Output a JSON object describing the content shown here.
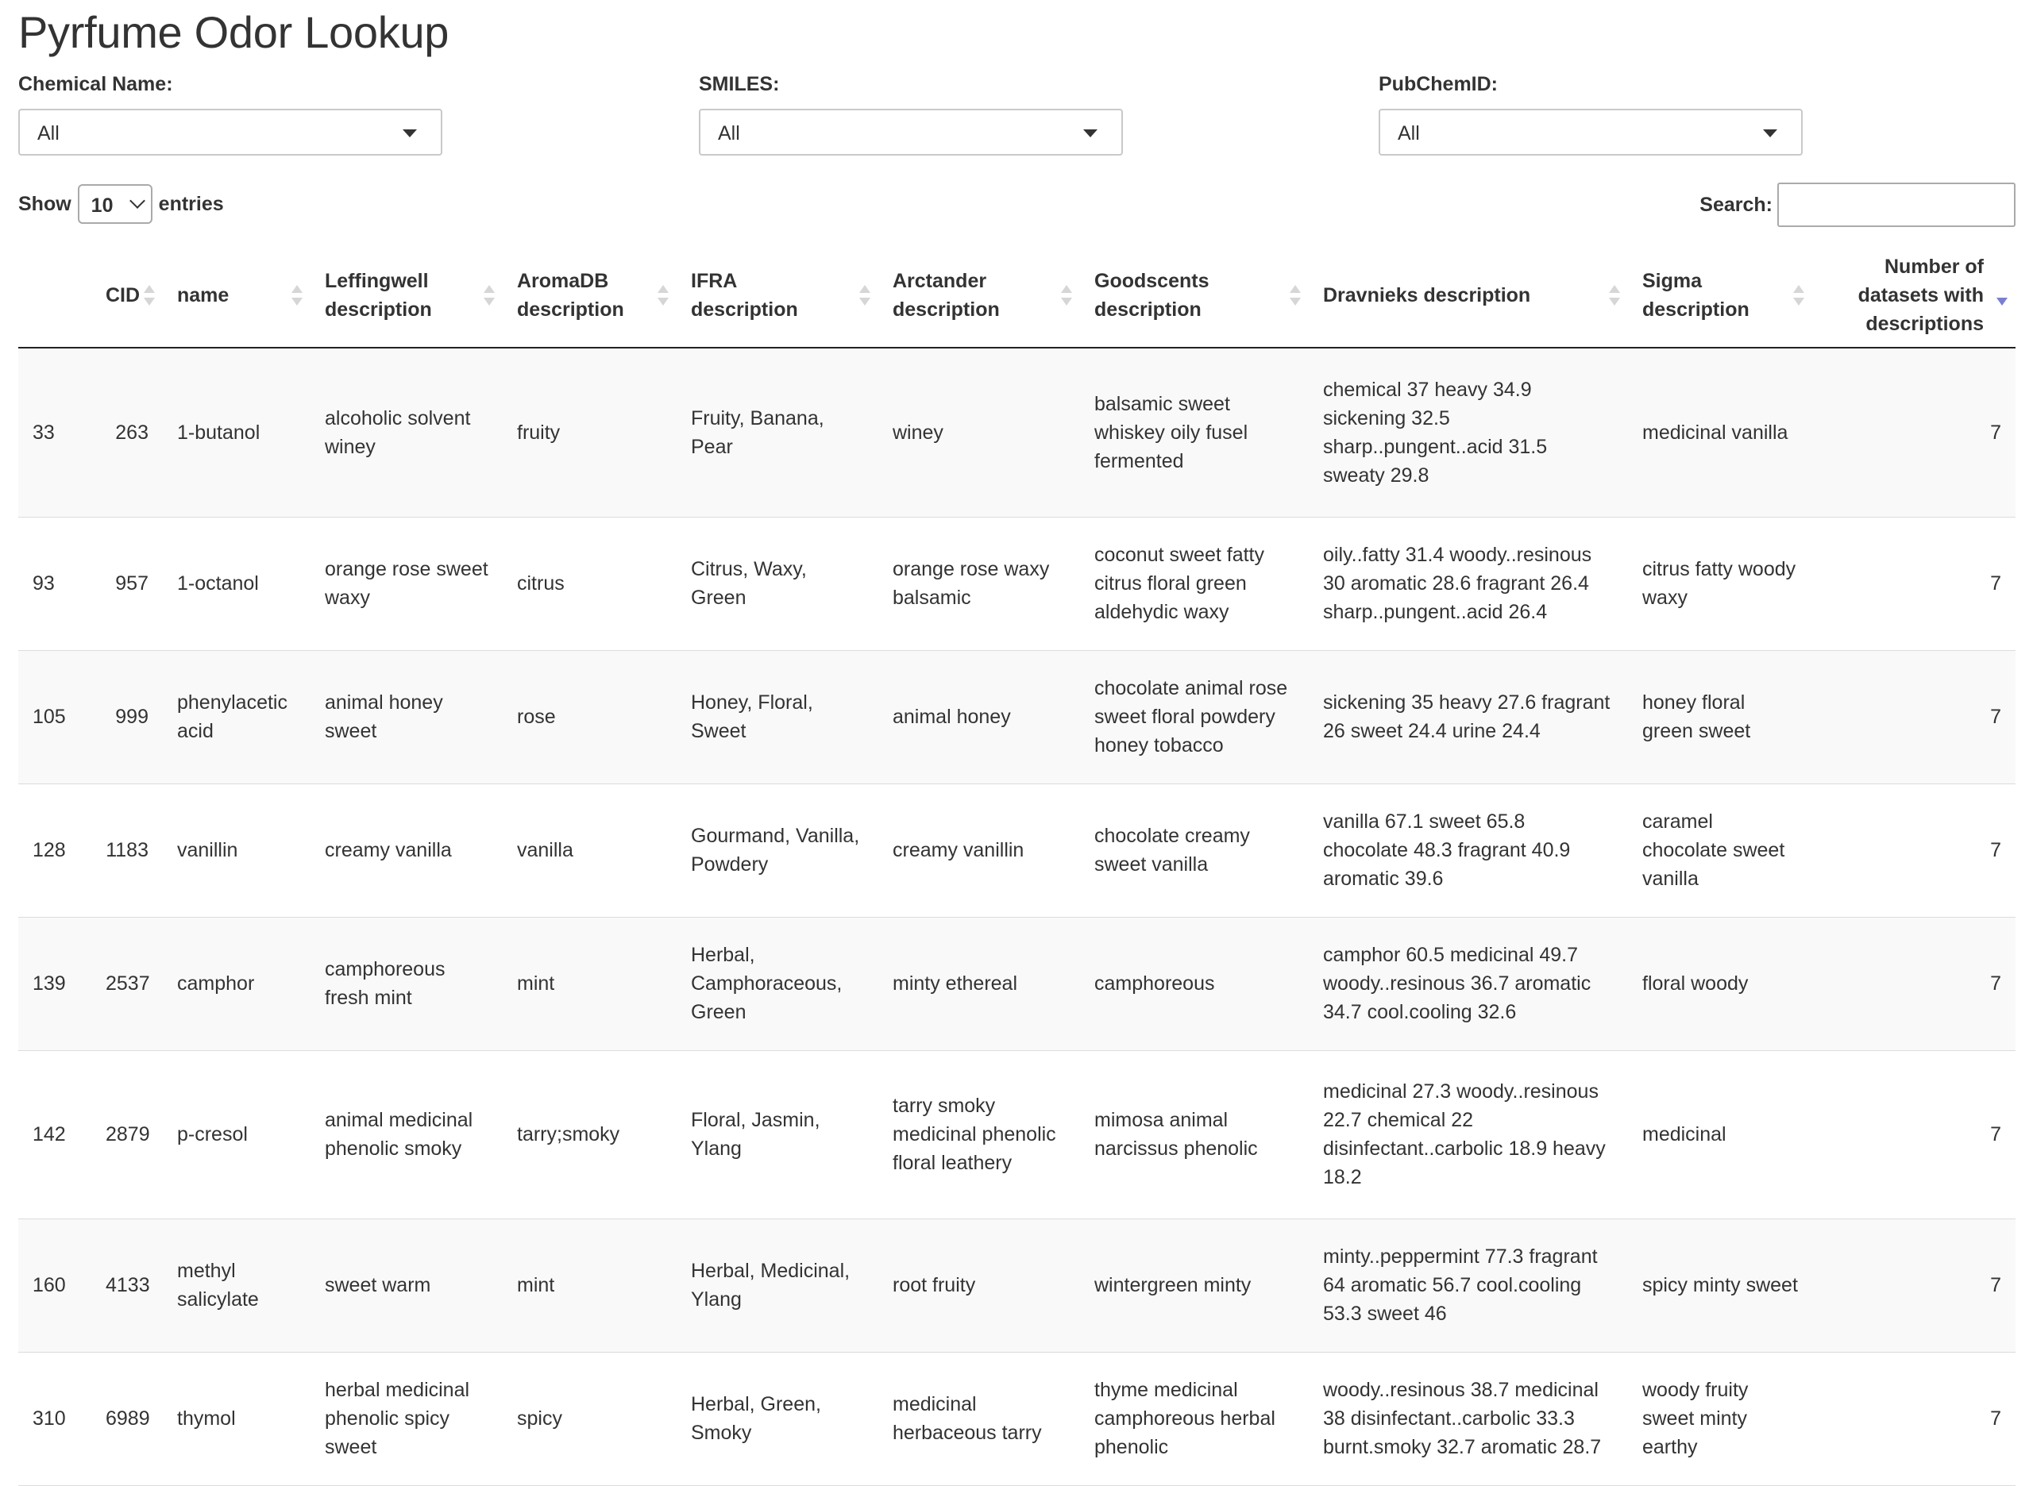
{
  "page": {
    "title": "Pyrfume Odor Lookup"
  },
  "filters": [
    {
      "label": "Chemical Name:",
      "value": "All"
    },
    {
      "label": "SMILES:",
      "value": "All"
    },
    {
      "label": "PubChemID:",
      "value": "All"
    }
  ],
  "table_controls": {
    "show_label": "Show",
    "entries_value": "10",
    "entries_label": "entries",
    "search_label": "Search:",
    "search_value": ""
  },
  "columns": [
    {
      "label": "",
      "align": "left"
    },
    {
      "label": "CID",
      "align": "right"
    },
    {
      "label": "name",
      "align": "left"
    },
    {
      "label": "Leffingwell description",
      "align": "left"
    },
    {
      "label": "AromaDB description",
      "align": "left"
    },
    {
      "label": "IFRA description",
      "align": "left"
    },
    {
      "label": "Arctander description",
      "align": "left"
    },
    {
      "label": "Goodscents description",
      "align": "left"
    },
    {
      "label": "Dravnieks description",
      "align": "left"
    },
    {
      "label": "Sigma description",
      "align": "left"
    },
    {
      "label": "Number of datasets with descriptions",
      "align": "right"
    }
  ],
  "rows": [
    [
      "33",
      "263",
      "1-butanol",
      "alcoholic solvent winey",
      "fruity",
      "Fruity, Banana, Pear",
      "winey",
      "balsamic sweet whiskey oily fusel fermented",
      "chemical 37 heavy 34.9 sickening 32.5 sharp..pungent..acid 31.5 sweaty 29.8",
      "medicinal vanilla",
      "7"
    ],
    [
      "93",
      "957",
      "1-octanol",
      "orange rose sweet waxy",
      "citrus",
      "Citrus, Waxy, Green",
      "orange rose waxy balsamic",
      "coconut sweet fatty citrus floral green aldehydic waxy",
      "oily..fatty 31.4 woody..resinous 30 aromatic 28.6 fragrant 26.4 sharp..pungent..acid 26.4",
      "citrus fatty woody waxy",
      "7"
    ],
    [
      "105",
      "999",
      "phenylacetic acid",
      "animal honey sweet",
      "rose",
      "Honey, Floral, Sweet",
      "animal honey",
      "chocolate animal rose sweet floral powdery honey tobacco",
      "sickening 35 heavy 27.6 fragrant 26 sweet 24.4 urine 24.4",
      "honey floral green sweet",
      "7"
    ],
    [
      "128",
      "1183",
      "vanillin",
      "creamy vanilla",
      "vanilla",
      "Gourmand, Vanilla, Powdery",
      "creamy vanillin",
      "chocolate creamy sweet vanilla",
      "vanilla 67.1 sweet 65.8 chocolate 48.3 fragrant 40.9 aromatic 39.6",
      "caramel chocolate sweet vanilla",
      "7"
    ],
    [
      "139",
      "2537",
      "camphor",
      "camphoreous fresh mint",
      "mint",
      "Herbal, Camphoraceous, Green",
      "minty ethereal",
      "camphoreous",
      "camphor 60.5 medicinal 49.7 woody..resinous 36.7 aromatic 34.7 cool.cooling 32.6",
      "floral woody",
      "7"
    ],
    [
      "142",
      "2879",
      "p-cresol",
      "animal medicinal phenolic smoky",
      "tarry;smoky",
      "Floral, Jasmin, Ylang",
      "tarry smoky medicinal phenolic floral leathery",
      "mimosa animal narcissus phenolic",
      "medicinal 27.3 woody..resinous 22.7 chemical 22 disinfectant..carbolic 18.9 heavy 18.2",
      "medicinal",
      "7"
    ],
    [
      "160",
      "4133",
      "methyl salicylate",
      "sweet warm",
      "mint",
      "Herbal, Medicinal, Ylang",
      "root fruity",
      "wintergreen minty",
      "minty..peppermint 77.3 fragrant 64 aromatic 56.7 cool.cooling 53.3 sweet 46",
      "spicy minty sweet",
      "7"
    ],
    [
      "310",
      "6989",
      "thymol",
      "herbal medicinal phenolic spicy sweet",
      "spicy",
      "Herbal, Green, Smoky",
      "medicinal herbaceous tarry",
      "thyme medicinal camphoreous herbal phenolic",
      "woody..resinous 38.7 medicinal 38 disinfectant..carbolic 33.3 burnt.smoky 32.7 aromatic 28.7",
      "woody fruity sweet minty earthy",
      "7"
    ]
  ]
}
